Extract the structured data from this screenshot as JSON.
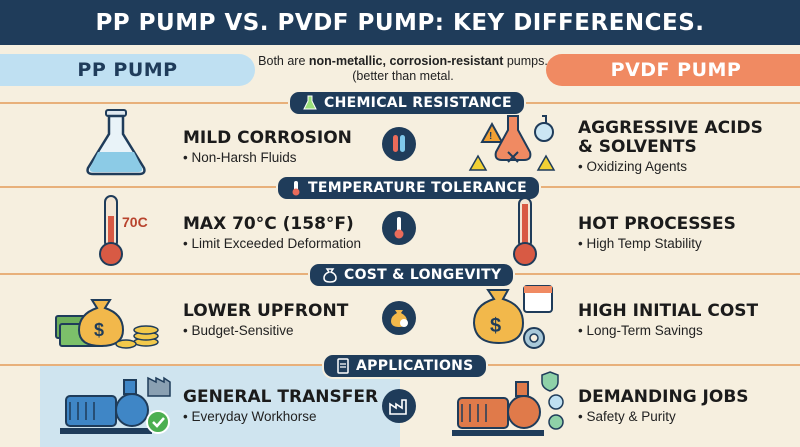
{
  "header": {
    "title": "PP PUMP VS. PVDF PUMP: KEY DIFFERENCES."
  },
  "left_pill": "PP PUMP",
  "right_pill": "PVDF PUMP",
  "intro": {
    "prefix": "Both are ",
    "bold": "non-metallic, corrosion-resistant",
    "suffix": " pumps. (better than metal."
  },
  "sections": {
    "chemical": {
      "label": "CHEMICAL RESISTANCE",
      "pp_title": "MILD CORROSION",
      "pp_sub": "• Non-Harsh Fluids",
      "pvdf_title_1": "AGGRESSIVE ACIDS",
      "pvdf_title_2": "& SOLVENTS",
      "pvdf_sub": "• Oxidizing Agents"
    },
    "temperature": {
      "label": "TEMPERATURE TOLERANCE",
      "thermo_label": "70C",
      "pp_title": "MAX 70°C (158°F)",
      "pp_sub": "• Limit Exceeded Deformation",
      "pvdf_title": "HOT PROCESSES",
      "pvdf_sub": "• High Temp Stability"
    },
    "cost": {
      "label": "COST & LONGEVITY",
      "pp_title": "LOWER UPFRONT",
      "pp_sub": "• Budget-Sensitive",
      "pvdf_title": "HIGH INITIAL COST",
      "pvdf_sub": "• Long-Term Savings"
    },
    "applications": {
      "label": "APPLICATIONS",
      "pp_title": "GENERAL TRANSFER",
      "pp_sub": "• Everyday Workhorse",
      "pvdf_title": "DEMANDING JOBS",
      "pvdf_sub": "• Safety & Purity"
    }
  },
  "colors": {
    "navy": "#1f3c5a",
    "orange": "#f08a62",
    "light_blue": "#bfe0f2",
    "cream": "#f6efdf"
  },
  "icons": [
    "flask-icon",
    "test-tubes-icon",
    "acid-flasks-icon",
    "thermometer-icon",
    "money-icon",
    "money-bag-gear-icon",
    "pump-icon",
    "factory-icon"
  ]
}
